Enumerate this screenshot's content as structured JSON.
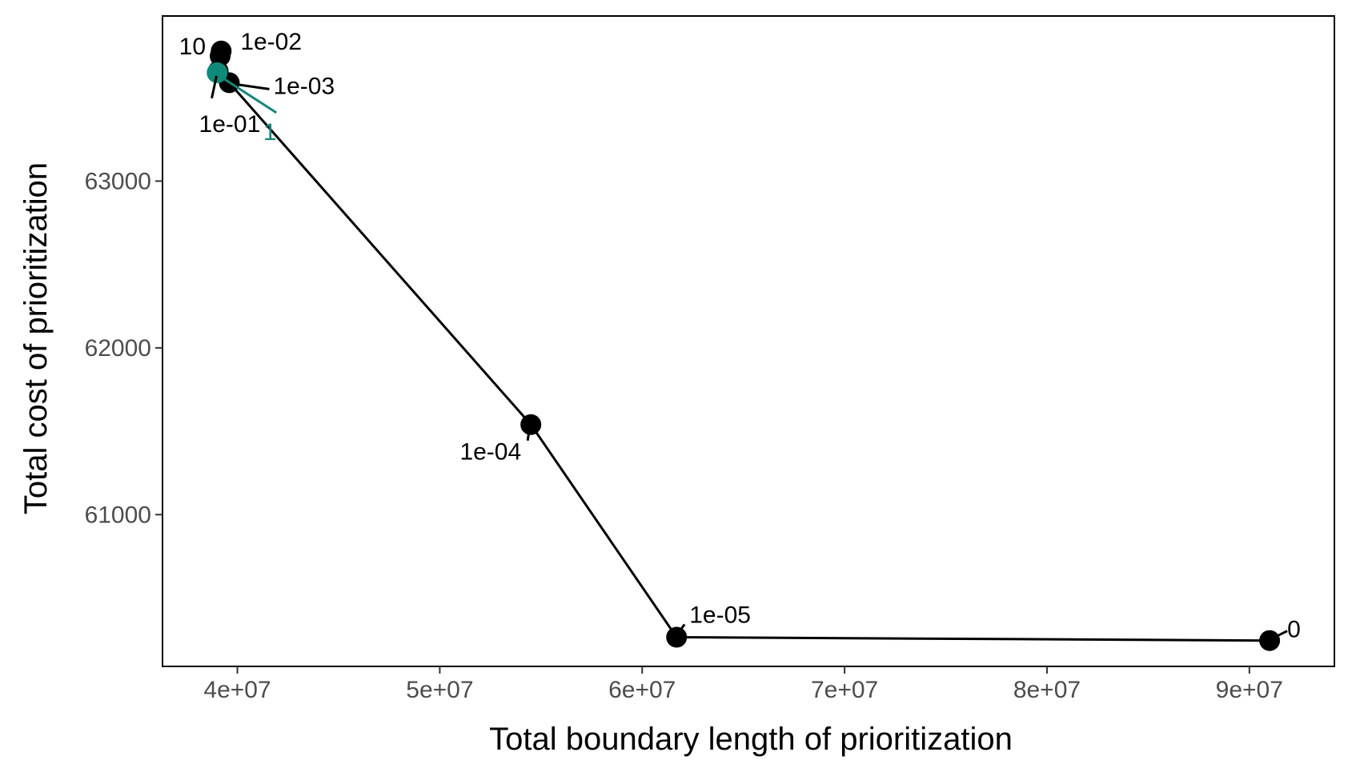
{
  "chart_data": {
    "type": "line",
    "title": "",
    "xlabel": "Total boundary length of prioritization",
    "ylabel": "Total cost of prioritization",
    "xlim": [
      36300000,
      94200000
    ],
    "ylim": [
      60090000,
      63990000
    ],
    "xlim_note": "data units",
    "x_ticks": [
      40000000,
      50000000,
      60000000,
      70000000,
      80000000,
      90000000
    ],
    "x_tick_labels": [
      "4e+07",
      "5e+07",
      "6e+07",
      "7e+07",
      "8e+07",
      "9e+07"
    ],
    "y_ticks": [
      61000,
      62000,
      63000
    ],
    "y_tick_labels": [
      "61000",
      "62000",
      "63000"
    ],
    "grid": false,
    "legend": "none",
    "colors": {
      "default": "#000000",
      "highlight": "#0E8A7A",
      "tick_text": "#4d4d4d"
    },
    "points": [
      {
        "label": "0",
        "x": 91000000,
        "y": 60245,
        "highlight": false
      },
      {
        "label": "1e-05",
        "x": 61700000,
        "y": 60265,
        "highlight": false
      },
      {
        "label": "1e-04",
        "x": 54500000,
        "y": 61540,
        "highlight": false
      },
      {
        "label": "1e-03",
        "x": 39600000,
        "y": 63590,
        "highlight": false
      },
      {
        "label": "1e-02",
        "x": 39200000,
        "y": 63780,
        "highlight": false
      },
      {
        "label": "1e-01",
        "x": 39050000,
        "y": 63660,
        "highlight": false
      },
      {
        "label": "1",
        "x": 39000000,
        "y": 63650,
        "highlight": true
      },
      {
        "label": "10",
        "x": 39150000,
        "y": 63750,
        "highlight": false
      }
    ]
  }
}
